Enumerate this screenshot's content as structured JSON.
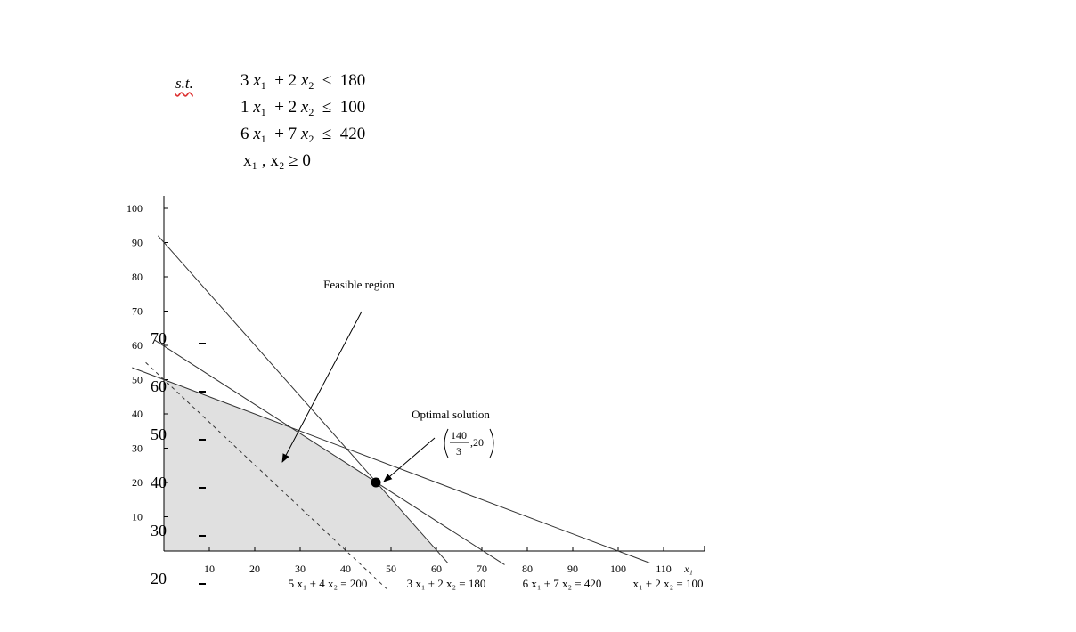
{
  "problem": {
    "st_label": "s.t.",
    "constraints": [
      {
        "a": "3",
        "b": "2",
        "op": "≤",
        "rhs": "180"
      },
      {
        "a": "1",
        "b": "2",
        "op": "≤",
        "rhs": "100"
      },
      {
        "a": "6",
        "b": "7",
        "op": "≤",
        "rhs": "420"
      }
    ],
    "nonneg": "x₁ , x₂ ≥ 0"
  },
  "chart_data": {
    "type": "line",
    "title": "",
    "xlabel": "x₁",
    "ylabel": "",
    "xlim": [
      0,
      115
    ],
    "ylim": [
      0,
      100
    ],
    "x_ticks": [
      10,
      20,
      30,
      40,
      50,
      60,
      70,
      80,
      90,
      100,
      110
    ],
    "y_ticks": [
      10,
      20,
      30,
      40,
      50,
      60,
      70,
      80,
      90,
      100
    ],
    "left_overlay_ticks": [
      "70",
      "60",
      "50",
      "40",
      "30",
      "20"
    ],
    "series": [
      {
        "name": "5 x₁ + 4 x₂ = 200",
        "points": [
          [
            -4,
            55
          ],
          [
            49,
            -11
          ]
        ],
        "style": "dashed"
      },
      {
        "name": "3 x₁ + 2 x₂ = 180",
        "points": [
          [
            -1.3,
            92
          ],
          [
            62.5,
            -3.5
          ]
        ],
        "style": "solid"
      },
      {
        "name": "6 x₁ + 7 x₂ = 420",
        "points": [
          [
            -2,
            61.5
          ],
          [
            75,
            -4
          ]
        ],
        "style": "solid"
      },
      {
        "name": "x₁ + 2 x₂ = 100",
        "points": [
          [
            -7,
            53.5
          ],
          [
            107,
            -3.5
          ]
        ],
        "style": "solid"
      }
    ],
    "feasible_region": [
      [
        0,
        0
      ],
      [
        0,
        50
      ],
      [
        28,
        36
      ],
      [
        46.67,
        20
      ],
      [
        60,
        0
      ]
    ],
    "optimal_point": [
      46.67,
      20
    ],
    "annotations": {
      "feasible_label": "Feasible region",
      "optimal_label": "Optimal solution",
      "optimal_num": "140",
      "optimal_den": "3",
      "optimal_y": ",20"
    },
    "bottom_labels": [
      "5 x₁ + 4 x₂ = 200",
      "3 x₁ + 2 x₂ = 180",
      "6 x₁ + 7 x₂ = 420",
      "x₁ + 2 x₂ = 100"
    ]
  }
}
